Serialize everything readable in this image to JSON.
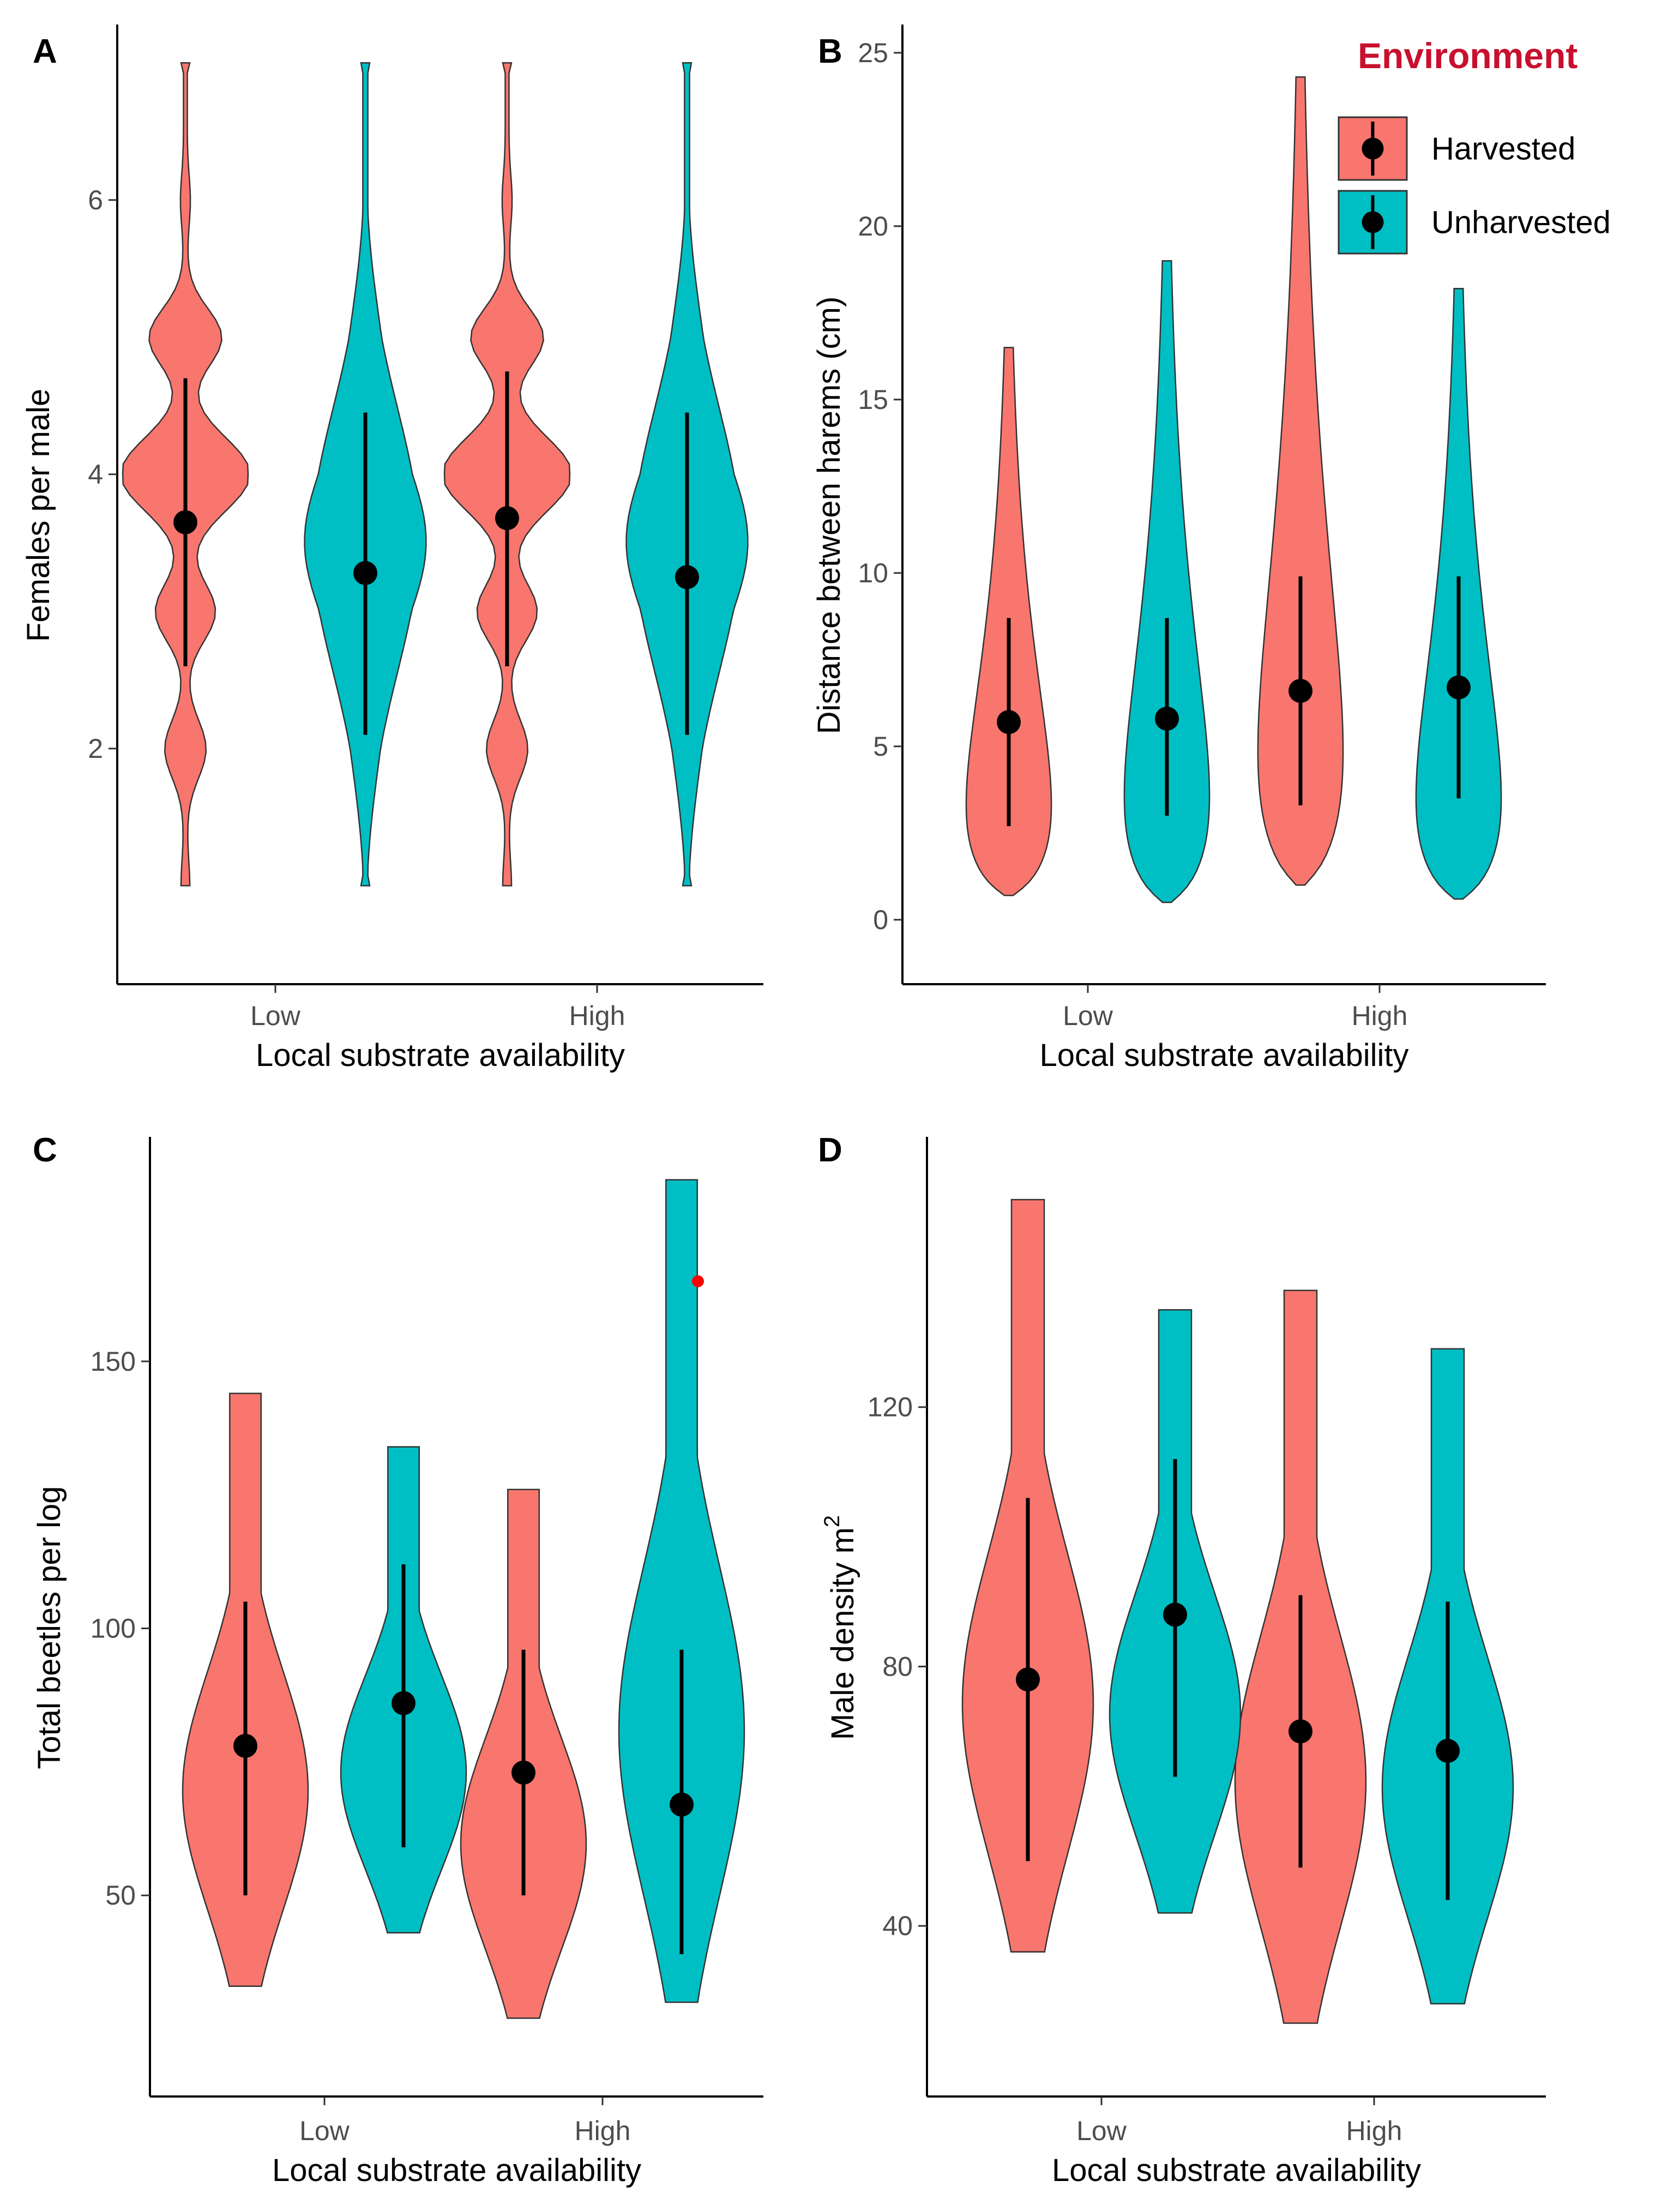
{
  "colors": {
    "harvested": "#f8766d",
    "unharvested": "#00bfc4",
    "outlier": "#ff0000",
    "legend_title": "#c8102e"
  },
  "legend": {
    "title": "Environment",
    "items": [
      "Harvested",
      "Unharvested"
    ]
  },
  "chart_data": [
    {
      "panel": "A",
      "type": "violin",
      "xlabel": "Local substrate availability",
      "ylabel": "Females per male",
      "categories": [
        "Low",
        "High"
      ],
      "yticks": [
        2,
        4,
        6
      ],
      "ylim": [
        0.6,
        7.2
      ],
      "series": [
        {
          "name": "Harvested",
          "mean": [
            3.65,
            3.68
          ],
          "range": [
            [
              2.6,
              4.7
            ],
            [
              2.6,
              4.75
            ]
          ],
          "min": [
            1,
            1
          ],
          "max": [
            7,
            7
          ]
        },
        {
          "name": "Unharvested",
          "mean": [
            3.28,
            3.25
          ],
          "range": [
            [
              2.1,
              4.45
            ],
            [
              2.1,
              4.45
            ]
          ],
          "min": [
            1,
            1
          ],
          "max": [
            7,
            7
          ]
        }
      ]
    },
    {
      "panel": "B",
      "type": "violin",
      "xlabel": "Local substrate availability",
      "ylabel": "Distance between harems (cm)",
      "categories": [
        "Low",
        "High"
      ],
      "yticks": [
        0,
        5,
        10,
        15,
        20,
        25
      ],
      "ylim": [
        -0.6,
        25.5
      ],
      "series": [
        {
          "name": "Harvested",
          "mean": [
            5.7,
            6.6
          ],
          "range": [
            [
              2.7,
              8.7
            ],
            [
              3.3,
              9.9
            ]
          ],
          "min": [
            0.7,
            1.0
          ],
          "max": [
            16.5,
            24.3
          ]
        },
        {
          "name": "Unharvested",
          "mean": [
            5.8,
            6.7
          ],
          "range": [
            [
              3.0,
              8.7
            ],
            [
              3.5,
              9.9
            ]
          ],
          "min": [
            0.5,
            0.6
          ],
          "max": [
            19.0,
            18.2
          ]
        }
      ]
    },
    {
      "panel": "C",
      "type": "violin",
      "xlabel": "Local substrate availability",
      "ylabel": "Total beetles per log",
      "categories": [
        "Low",
        "High"
      ],
      "yticks": [
        50,
        100,
        150
      ],
      "ylim": [
        20,
        190
      ],
      "series": [
        {
          "name": "Harvested",
          "mean": [
            78,
            73
          ],
          "range": [
            [
              50,
              105
            ],
            [
              50,
              96
            ]
          ],
          "min": [
            33,
            27
          ],
          "max": [
            144,
            126
          ]
        },
        {
          "name": "Unharvested",
          "mean": [
            86,
            67
          ],
          "range": [
            [
              59,
              112
            ],
            [
              39,
              96
            ]
          ],
          "min": [
            43,
            30
          ],
          "max": [
            134,
            184
          ]
        }
      ],
      "annotations": [
        {
          "category": "High",
          "series": "Unharvested",
          "y": 165,
          "marker": "red point"
        }
      ]
    },
    {
      "panel": "D",
      "type": "violin",
      "xlabel": "Local substrate availability",
      "ylabel": "Male density m",
      "ylabel_superscript": "2",
      "categories": [
        "Low",
        "High"
      ],
      "yticks": [
        40,
        80,
        120
      ],
      "ylim": [
        20,
        160
      ],
      "series": [
        {
          "name": "Harvested",
          "mean": [
            78,
            70
          ],
          "range": [
            [
              50,
              106
            ],
            [
              49,
              91
            ]
          ],
          "min": [
            36,
            25
          ],
          "max": [
            152,
            138
          ]
        },
        {
          "name": "Unharvested",
          "mean": [
            88,
            67
          ],
          "range": [
            [
              63,
              112
            ],
            [
              44,
              90
            ]
          ],
          "min": [
            42,
            28
          ],
          "max": [
            135,
            129
          ]
        }
      ]
    }
  ]
}
